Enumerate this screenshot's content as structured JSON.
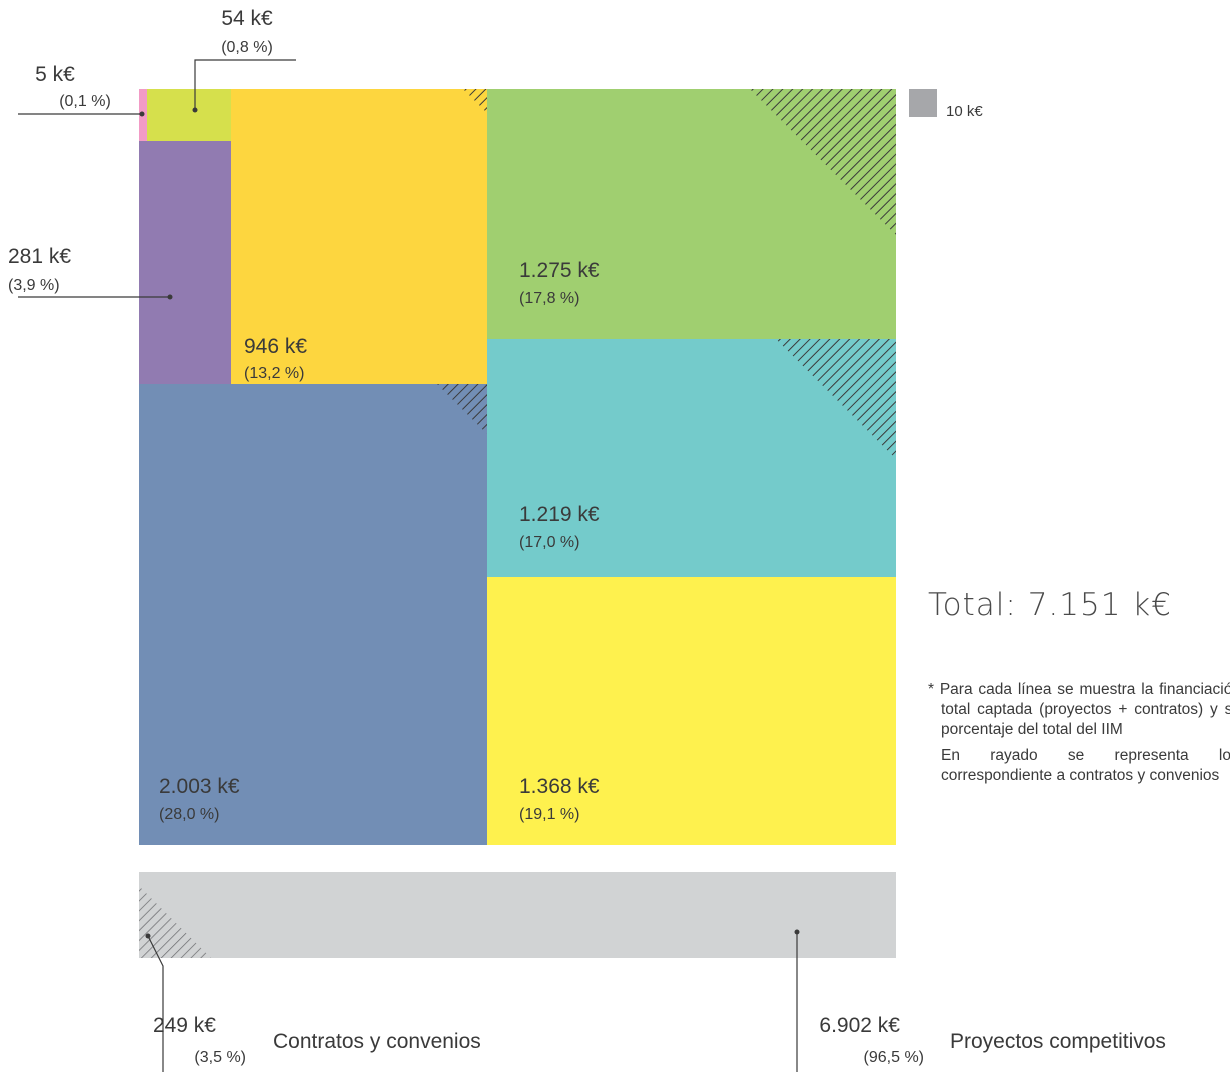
{
  "chart_data": {
    "type": "treemap",
    "unit": "k€",
    "total_label": "Total: 7.151 k€",
    "legend": {
      "swatch_value": "10 k€",
      "swatch_color": "#a6a7aa"
    },
    "cells": [
      {
        "value": 5,
        "value_label": "5 k€",
        "pct_label": "(0,1 %)",
        "color": "#f29bc6",
        "hatched": false
      },
      {
        "value": 54,
        "value_label": "54 k€",
        "pct_label": "(0,8 %)",
        "color": "#d6e04c",
        "hatched": false
      },
      {
        "value": 281,
        "value_label": "281 k€",
        "pct_label": "(3,9 %)",
        "color": "#917bb1",
        "hatched": false
      },
      {
        "value": 946,
        "value_label": "946 k€",
        "pct_label": "(13,2 %)",
        "color": "#fdd63f",
        "hatched": true
      },
      {
        "value": 1275,
        "value_label": "1.275 k€",
        "pct_label": "(17,8 %)",
        "color": "#a0cf70",
        "hatched": true
      },
      {
        "value": 1219,
        "value_label": "1.219 k€",
        "pct_label": "(17,0 %)",
        "color": "#74cbcb",
        "hatched": true
      },
      {
        "value": 2003,
        "value_label": "2.003 k€",
        "pct_label": "(28,0 %)",
        "color": "#728eb5",
        "hatched": true
      },
      {
        "value": 1368,
        "value_label": "1.368 k€",
        "pct_label": "(19,1 %)",
        "color": "#fef14e",
        "hatched": false
      }
    ],
    "split_bar": {
      "color": "#d1d3d4",
      "segments": [
        {
          "name": "Contratos y convenios",
          "value_label": "249 k€",
          "pct_label": "(3,5 %)",
          "hatched": true
        },
        {
          "name": "Proyectos competitivos",
          "value_label": "6.902 k€",
          "pct_label": "(96,5 %)",
          "hatched": false
        }
      ]
    },
    "notes": [
      "* Para cada línea se muestra la financiación total captada (proyectos + contratos) y su porcentaje del total del IIM",
      "En rayado se representa lo correspondiente a contratos y convenios"
    ]
  }
}
